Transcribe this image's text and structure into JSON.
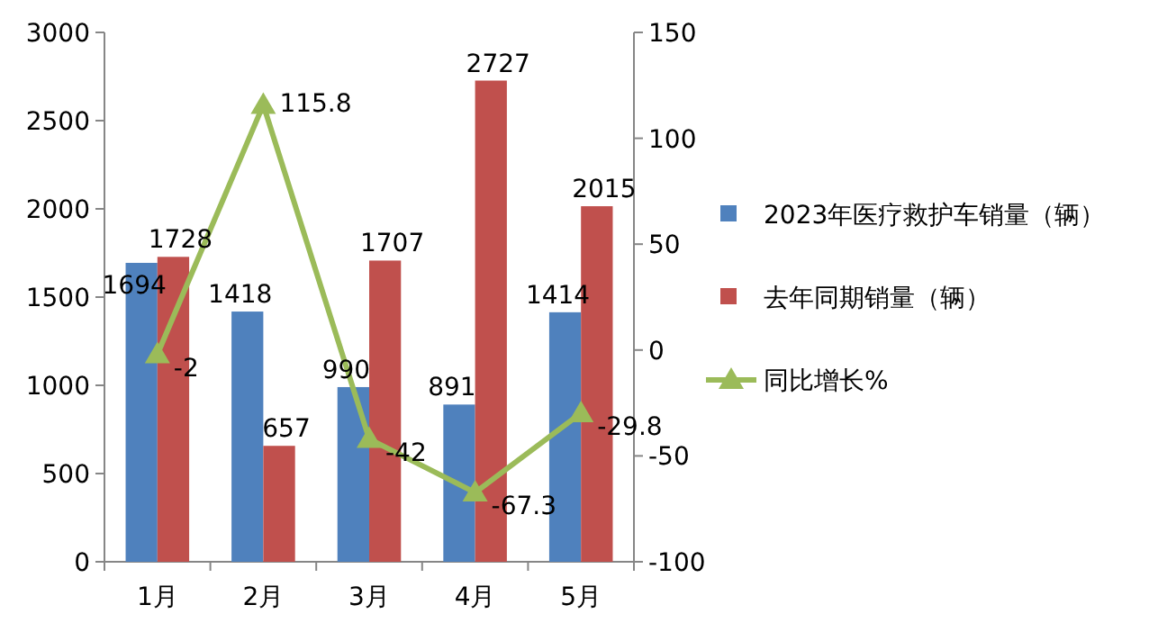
{
  "chart_data": {
    "type": "bar",
    "categories": [
      "1月",
      "2月",
      "3月",
      "4月",
      "5月"
    ],
    "series": [
      {
        "name": "2023年医疗救护车销量（辆）",
        "color": "#4f81bd",
        "values": [
          1694,
          1418,
          990,
          891,
          1414
        ]
      },
      {
        "name": "去年同期销量（辆）",
        "color": "#c0504d",
        "values": [
          1728,
          657,
          1707,
          2727,
          2015
        ]
      },
      {
        "name": "同比增长%",
        "type": "line",
        "axis": "y2",
        "color": "#9bbb59",
        "marker": "triangle",
        "values": [
          -2,
          115.8,
          -42,
          -67.3,
          -29.8
        ]
      }
    ],
    "ylim": [
      0,
      3000
    ],
    "yticks": [
      0,
      500,
      1000,
      1500,
      2000,
      2500,
      3000
    ],
    "y2lim": [
      -100,
      150
    ],
    "y2ticks": [
      -100,
      -50,
      0,
      50,
      100,
      150
    ],
    "data_labels": true,
    "legend": "right"
  }
}
